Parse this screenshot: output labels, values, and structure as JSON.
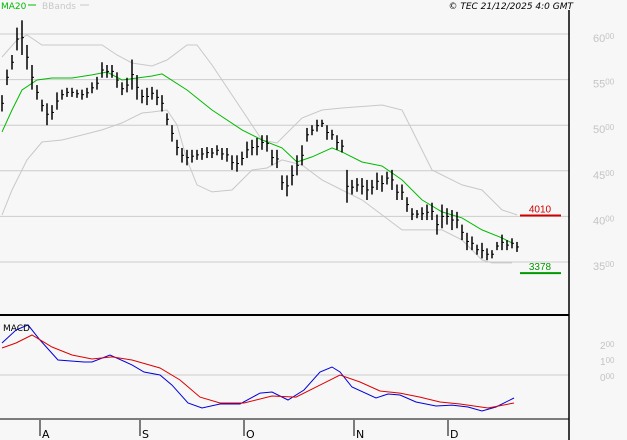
{
  "header": {
    "legend": [
      {
        "label": "MA20",
        "color": "#00bb00"
      },
      {
        "label": "BBands",
        "color": "#c8c8c8"
      }
    ],
    "copyright": "© TEC 21/12/2025 4:0 GMT"
  },
  "chart_data": [
    {
      "type": "ohlc-bar",
      "panel": "price",
      "y_axis_labels": [
        "6000",
        "5500",
        "5000",
        "4500",
        "4000",
        "3500"
      ],
      "ylim": [
        3100,
        6370
      ],
      "grid": true,
      "bars_high_low": [
        [
          5330,
          5150
        ],
        [
          5610,
          5440
        ],
        [
          5770,
          5610
        ],
        [
          6070,
          5820
        ],
        [
          6150,
          5770
        ],
        [
          5880,
          5610
        ],
        [
          5660,
          5390
        ],
        [
          5440,
          5280
        ],
        [
          5280,
          5150
        ],
        [
          5240,
          5000
        ],
        [
          5220,
          5060
        ],
        [
          5360,
          5170
        ],
        [
          5390,
          5280
        ],
        [
          5410,
          5310
        ],
        [
          5410,
          5310
        ],
        [
          5390,
          5300
        ],
        [
          5390,
          5280
        ],
        [
          5410,
          5300
        ],
        [
          5470,
          5350
        ],
        [
          5530,
          5390
        ],
        [
          5690,
          5520
        ],
        [
          5660,
          5520
        ],
        [
          5660,
          5520
        ],
        [
          5580,
          5410
        ],
        [
          5470,
          5330
        ],
        [
          5520,
          5360
        ],
        [
          5720,
          5390
        ],
        [
          5550,
          5280
        ],
        [
          5390,
          5240
        ],
        [
          5410,
          5220
        ],
        [
          5420,
          5280
        ],
        [
          5390,
          5220
        ],
        [
          5330,
          5150
        ],
        [
          5130,
          5000
        ],
        [
          5000,
          4820
        ],
        [
          4840,
          4670
        ],
        [
          4750,
          4590
        ],
        [
          4730,
          4560
        ],
        [
          4730,
          4590
        ],
        [
          4730,
          4620
        ],
        [
          4750,
          4620
        ],
        [
          4760,
          4640
        ],
        [
          4750,
          4640
        ],
        [
          4780,
          4670
        ],
        [
          4750,
          4620
        ],
        [
          4750,
          4600
        ],
        [
          4670,
          4510
        ],
        [
          4670,
          4490
        ],
        [
          4710,
          4560
        ],
        [
          4820,
          4640
        ],
        [
          4840,
          4670
        ],
        [
          4860,
          4670
        ],
        [
          4890,
          4730
        ],
        [
          4890,
          4710
        ],
        [
          4730,
          4560
        ],
        [
          4730,
          4530
        ],
        [
          4450,
          4290
        ],
        [
          4450,
          4220
        ],
        [
          4560,
          4340
        ],
        [
          4670,
          4450
        ],
        [
          4780,
          4560
        ],
        [
          4970,
          4820
        ],
        [
          5000,
          4890
        ],
        [
          5060,
          4930
        ],
        [
          5060,
          4980
        ],
        [
          5000,
          4840
        ],
        [
          4950,
          4840
        ],
        [
          4890,
          4730
        ],
        [
          4840,
          4700
        ],
        [
          4510,
          4150
        ],
        [
          4400,
          4240
        ],
        [
          4420,
          4270
        ],
        [
          4420,
          4240
        ],
        [
          4400,
          4180
        ],
        [
          4400,
          4240
        ],
        [
          4480,
          4290
        ],
        [
          4450,
          4270
        ],
        [
          4490,
          4350
        ],
        [
          4510,
          4290
        ],
        [
          4350,
          4180
        ],
        [
          4350,
          4180
        ],
        [
          4210,
          4050
        ],
        [
          4090,
          3960
        ],
        [
          4070,
          3980
        ],
        [
          4100,
          3960
        ],
        [
          4130,
          3960
        ],
        [
          4150,
          3960
        ],
        [
          4020,
          3800
        ],
        [
          4130,
          3870
        ],
        [
          4090,
          3910
        ],
        [
          4070,
          3850
        ],
        [
          4050,
          3870
        ],
        [
          3910,
          3740
        ],
        [
          3820,
          3630
        ],
        [
          3780,
          3630
        ],
        [
          3690,
          3580
        ],
        [
          3710,
          3540
        ],
        [
          3650,
          3520
        ],
        [
          3630,
          3540
        ],
        [
          3720,
          3630
        ],
        [
          3800,
          3630
        ],
        [
          3740,
          3630
        ],
        [
          3760,
          3650
        ],
        [
          3720,
          3610
        ]
      ],
      "ma20": [
        [
          0,
          4926
        ],
        [
          2,
          5167
        ],
        [
          4,
          5386
        ],
        [
          7,
          5496
        ],
        [
          10,
          5518
        ],
        [
          14,
          5518
        ],
        [
          18,
          5551
        ],
        [
          21,
          5583
        ],
        [
          24,
          5496
        ],
        [
          30,
          5540
        ],
        [
          32,
          5562
        ],
        [
          37,
          5386
        ],
        [
          42,
          5167
        ],
        [
          48,
          4948
        ],
        [
          52,
          4838
        ],
        [
          56,
          4751
        ],
        [
          59,
          4597
        ],
        [
          62,
          4652
        ],
        [
          66,
          4751
        ],
        [
          68,
          4707
        ],
        [
          72,
          4597
        ],
        [
          76,
          4553
        ],
        [
          80,
          4400
        ],
        [
          84,
          4181
        ],
        [
          88,
          4049
        ],
        [
          92,
          3984
        ],
        [
          96,
          3852
        ],
        [
          100,
          3764
        ],
        [
          102,
          3709
        ]
      ],
      "bband_upper": [
        [
          0,
          5748
        ],
        [
          3,
          5934
        ],
        [
          5,
          5989
        ],
        [
          8,
          5879
        ],
        [
          14,
          5879
        ],
        [
          20,
          5879
        ],
        [
          23,
          5770
        ],
        [
          26,
          5682
        ],
        [
          30,
          5649
        ],
        [
          33,
          5715
        ],
        [
          37,
          5879
        ],
        [
          39,
          5879
        ],
        [
          42,
          5660
        ],
        [
          48,
          5167
        ],
        [
          52,
          4838
        ],
        [
          55,
          4805
        ],
        [
          60,
          5079
        ],
        [
          64,
          5167
        ],
        [
          68,
          5189
        ],
        [
          76,
          5222
        ],
        [
          80,
          5167
        ],
        [
          82,
          4948
        ],
        [
          86,
          4509
        ],
        [
          92,
          4345
        ],
        [
          96,
          4290
        ],
        [
          100,
          4071
        ],
        [
          103,
          4016
        ]
      ],
      "bband_lower": [
        [
          0,
          4016
        ],
        [
          2,
          4290
        ],
        [
          5,
          4619
        ],
        [
          8,
          4816
        ],
        [
          12,
          4838
        ],
        [
          16,
          4893
        ],
        [
          20,
          4948
        ],
        [
          24,
          5025
        ],
        [
          28,
          5134
        ],
        [
          30,
          5145
        ],
        [
          33,
          5167
        ],
        [
          35,
          5003
        ],
        [
          37,
          4619
        ],
        [
          39,
          4345
        ],
        [
          42,
          4269
        ],
        [
          46,
          4290
        ],
        [
          50,
          4509
        ],
        [
          53,
          4531
        ],
        [
          56,
          4619
        ],
        [
          60,
          4564
        ],
        [
          64,
          4400
        ],
        [
          68,
          4290
        ],
        [
          72,
          4181
        ],
        [
          76,
          4016
        ],
        [
          80,
          3852
        ],
        [
          84,
          3852
        ],
        [
          88,
          3852
        ],
        [
          92,
          3742
        ],
        [
          96,
          3523
        ],
        [
          98,
          3490
        ],
        [
          102,
          3490
        ]
      ],
      "reference_levels": [
        {
          "label": "4010",
          "value": 4010,
          "color": "#cc0000"
        },
        {
          "label": "3378",
          "value": 3378,
          "color": "#009900"
        }
      ]
    },
    {
      "type": "line",
      "panel": "indicator",
      "title": "MACD",
      "y_axis_labels": [
        "200",
        "100",
        "000"
      ],
      "grid": true,
      "series": [
        {
          "color": "#0000dd",
          "points": [
            [
              0,
              200
            ],
            [
              2.8,
              281
            ],
            [
              5.2,
              313
            ],
            [
              7.6,
              219
            ],
            [
              11.2,
              94
            ],
            [
              16.4,
              81
            ],
            [
              18,
              81
            ],
            [
              21.6,
              125
            ],
            [
              26,
              63
            ],
            [
              28.4,
              19
            ],
            [
              31.6,
              0
            ],
            [
              34,
              -63
            ],
            [
              37.2,
              -175
            ],
            [
              40,
              -206
            ],
            [
              43.6,
              -181
            ],
            [
              47.6,
              -181
            ],
            [
              51.6,
              -113
            ],
            [
              54,
              -106
            ],
            [
              57.2,
              -156
            ],
            [
              60.4,
              -94
            ],
            [
              63.6,
              19
            ],
            [
              66,
              50
            ],
            [
              67.6,
              19
            ],
            [
              70,
              -75
            ],
            [
              74.8,
              -144
            ],
            [
              77.2,
              -119
            ],
            [
              79.6,
              -125
            ],
            [
              82.8,
              -169
            ],
            [
              86.8,
              -194
            ],
            [
              90,
              -188
            ],
            [
              93.2,
              -200
            ],
            [
              96,
              -225
            ],
            [
              98.8,
              -200
            ],
            [
              102.4,
              -144
            ]
          ]
        },
        {
          "color": "#dd0000",
          "points": [
            [
              0,
              169
            ],
            [
              2.8,
              200
            ],
            [
              6,
              250
            ],
            [
              10,
              175
            ],
            [
              14,
              125
            ],
            [
              18,
              100
            ],
            [
              22,
              113
            ],
            [
              26,
              94
            ],
            [
              31.6,
              44
            ],
            [
              35.6,
              -31
            ],
            [
              39.6,
              -138
            ],
            [
              43.6,
              -175
            ],
            [
              48.4,
              -175
            ],
            [
              54,
              -131
            ],
            [
              58.8,
              -138
            ],
            [
              63.6,
              -63
            ],
            [
              67.6,
              0
            ],
            [
              71.6,
              -44
            ],
            [
              75.6,
              -100
            ],
            [
              79.6,
              -113
            ],
            [
              83.6,
              -138
            ],
            [
              87.6,
              -169
            ],
            [
              91.6,
              -181
            ],
            [
              97.2,
              -206
            ],
            [
              102.4,
              -175
            ]
          ]
        }
      ]
    }
  ],
  "x_axis": {
    "labels": [
      {
        "label": "A",
        "bar": 7.6
      },
      {
        "label": "S",
        "bar": 27.6
      },
      {
        "label": "O",
        "bar": 48.4
      },
      {
        "label": "N",
        "bar": 70.4
      },
      {
        "label": "D",
        "bar": 89.2
      }
    ]
  }
}
